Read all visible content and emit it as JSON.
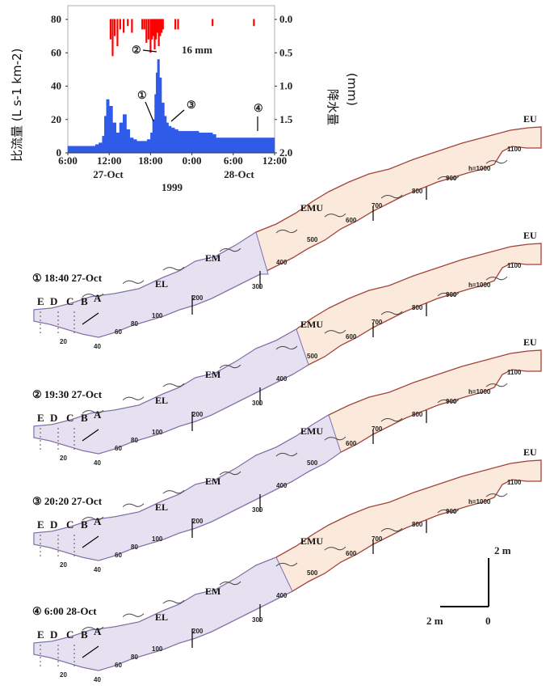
{
  "chart_data": {
    "type": "bar",
    "ylabel_left": "比流量 (L s-1 km-2)",
    "ylabel_right": "降水量",
    "ylabel_right_unit": "(mm)",
    "y_left_ticks": [
      "0",
      "20",
      "40",
      "60",
      "80"
    ],
    "y_right_ticks": [
      "0.0",
      "0.5",
      "1.0",
      "1.5",
      "2.0"
    ],
    "ylim_left": [
      0,
      80
    ],
    "ylim_right": [
      0,
      2.0
    ],
    "x_ticks": [
      "6:00",
      "12:00",
      "18:00",
      "0:00",
      "6:00",
      "12:00"
    ],
    "date_labels": [
      "27-Oct",
      "28-Oct"
    ],
    "year_label": "1999",
    "annotation_mm": "16 mm",
    "point_markers": [
      "①",
      "②",
      "③",
      "④"
    ],
    "discharge": {
      "hours": [
        6,
        7,
        8,
        9,
        10,
        10.5,
        11,
        11.3,
        11.6,
        12,
        12.5,
        13,
        13.5,
        14,
        14.5,
        15,
        15.5,
        16,
        16.5,
        17,
        17.5,
        18,
        18.3,
        18.6,
        18.8,
        19,
        19.3,
        19.6,
        20,
        20.3,
        20.6,
        21,
        21.5,
        22,
        23,
        24,
        25,
        26,
        27,
        27.5,
        28,
        29,
        30,
        31,
        32,
        33,
        34,
        35,
        36
      ],
      "values": [
        4,
        4,
        4,
        4,
        5,
        6,
        10,
        22,
        32,
        28,
        18,
        12,
        18,
        23,
        14,
        9,
        8,
        7,
        7,
        7,
        8,
        12,
        20,
        35,
        48,
        56,
        45,
        30,
        22,
        18,
        16,
        15,
        14,
        13,
        13,
        13,
        12,
        12,
        11,
        9,
        9,
        9,
        9,
        9,
        9,
        9,
        9,
        9,
        9
      ]
    },
    "rainfall": {
      "hours": [
        12.2,
        12.5,
        12.8,
        13.2,
        13.6,
        14.1,
        14.7,
        15.3,
        16.8,
        17.1,
        17.4,
        17.7,
        18.0,
        18.2,
        18.4,
        18.6,
        18.8,
        19.0,
        19.2,
        19.4,
        19.6,
        19.8,
        21.6,
        22.0,
        27.0,
        33.0
      ],
      "mm": [
        0.3,
        0.55,
        0.25,
        0.4,
        0.15,
        0.2,
        0.1,
        0.2,
        0.15,
        0.15,
        0.35,
        0.3,
        0.5,
        0.3,
        0.25,
        0.45,
        0.3,
        0.2,
        0.4,
        0.25,
        0.2,
        0.15,
        0.15,
        0.15,
        0.1,
        0.1
      ]
    }
  },
  "labels": {
    "sections": [
      "EU",
      "EMU",
      "EM",
      "EL",
      "E",
      "D",
      "C",
      "B",
      "A"
    ],
    "contours": [
      "1100",
      "h=1000",
      "900",
      "800",
      "700",
      "600",
      "500",
      "400",
      "300",
      "200",
      "100",
      "80",
      "60",
      "40",
      "20"
    ],
    "panels": [
      "① 18:40 27-Oct",
      "② 19:30 27-Oct",
      "③ 20:20 27-Oct",
      "④ 6:00 28-Oct"
    ]
  },
  "scale_bar": {
    "vertical": "2 m",
    "horizontal": "2 m",
    "origin": "0"
  },
  "colors": {
    "discharge": "#2f5be8",
    "rain": "#ff0000",
    "slope_fill": "#fbe9dc",
    "slope_edge": "#a2443a",
    "saturated": "#e6e1f0",
    "saturated_edge": "#7a6fb4"
  }
}
